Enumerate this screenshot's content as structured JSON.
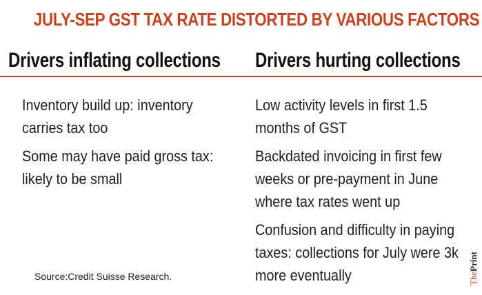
{
  "title": "JULY-SEP GST TAX RATE DISTORTED BY VARIOUS FACTORS",
  "columns": {
    "left": {
      "heading": "Drivers inflating collections",
      "items": [
        "Inventory build up: inventory carries tax too",
        "Some may have paid gross tax: likely to be small"
      ]
    },
    "right": {
      "heading": "Drivers hurting collections",
      "items": [
        "Low activity levels in first 1.5 months of GST",
        "Backdated invoicing in first few weeks or pre-payment in June where tax rates went up",
        "Confusion and difficulty in paying taxes: collections for July were 3k more eventually"
      ]
    }
  },
  "source": "Source:Credit Suisse Research.",
  "brand": {
    "prefix": "The",
    "name": "Print"
  },
  "colors": {
    "accent": "#c8411d",
    "text": "#1e1e1e",
    "heading": "#111111"
  }
}
